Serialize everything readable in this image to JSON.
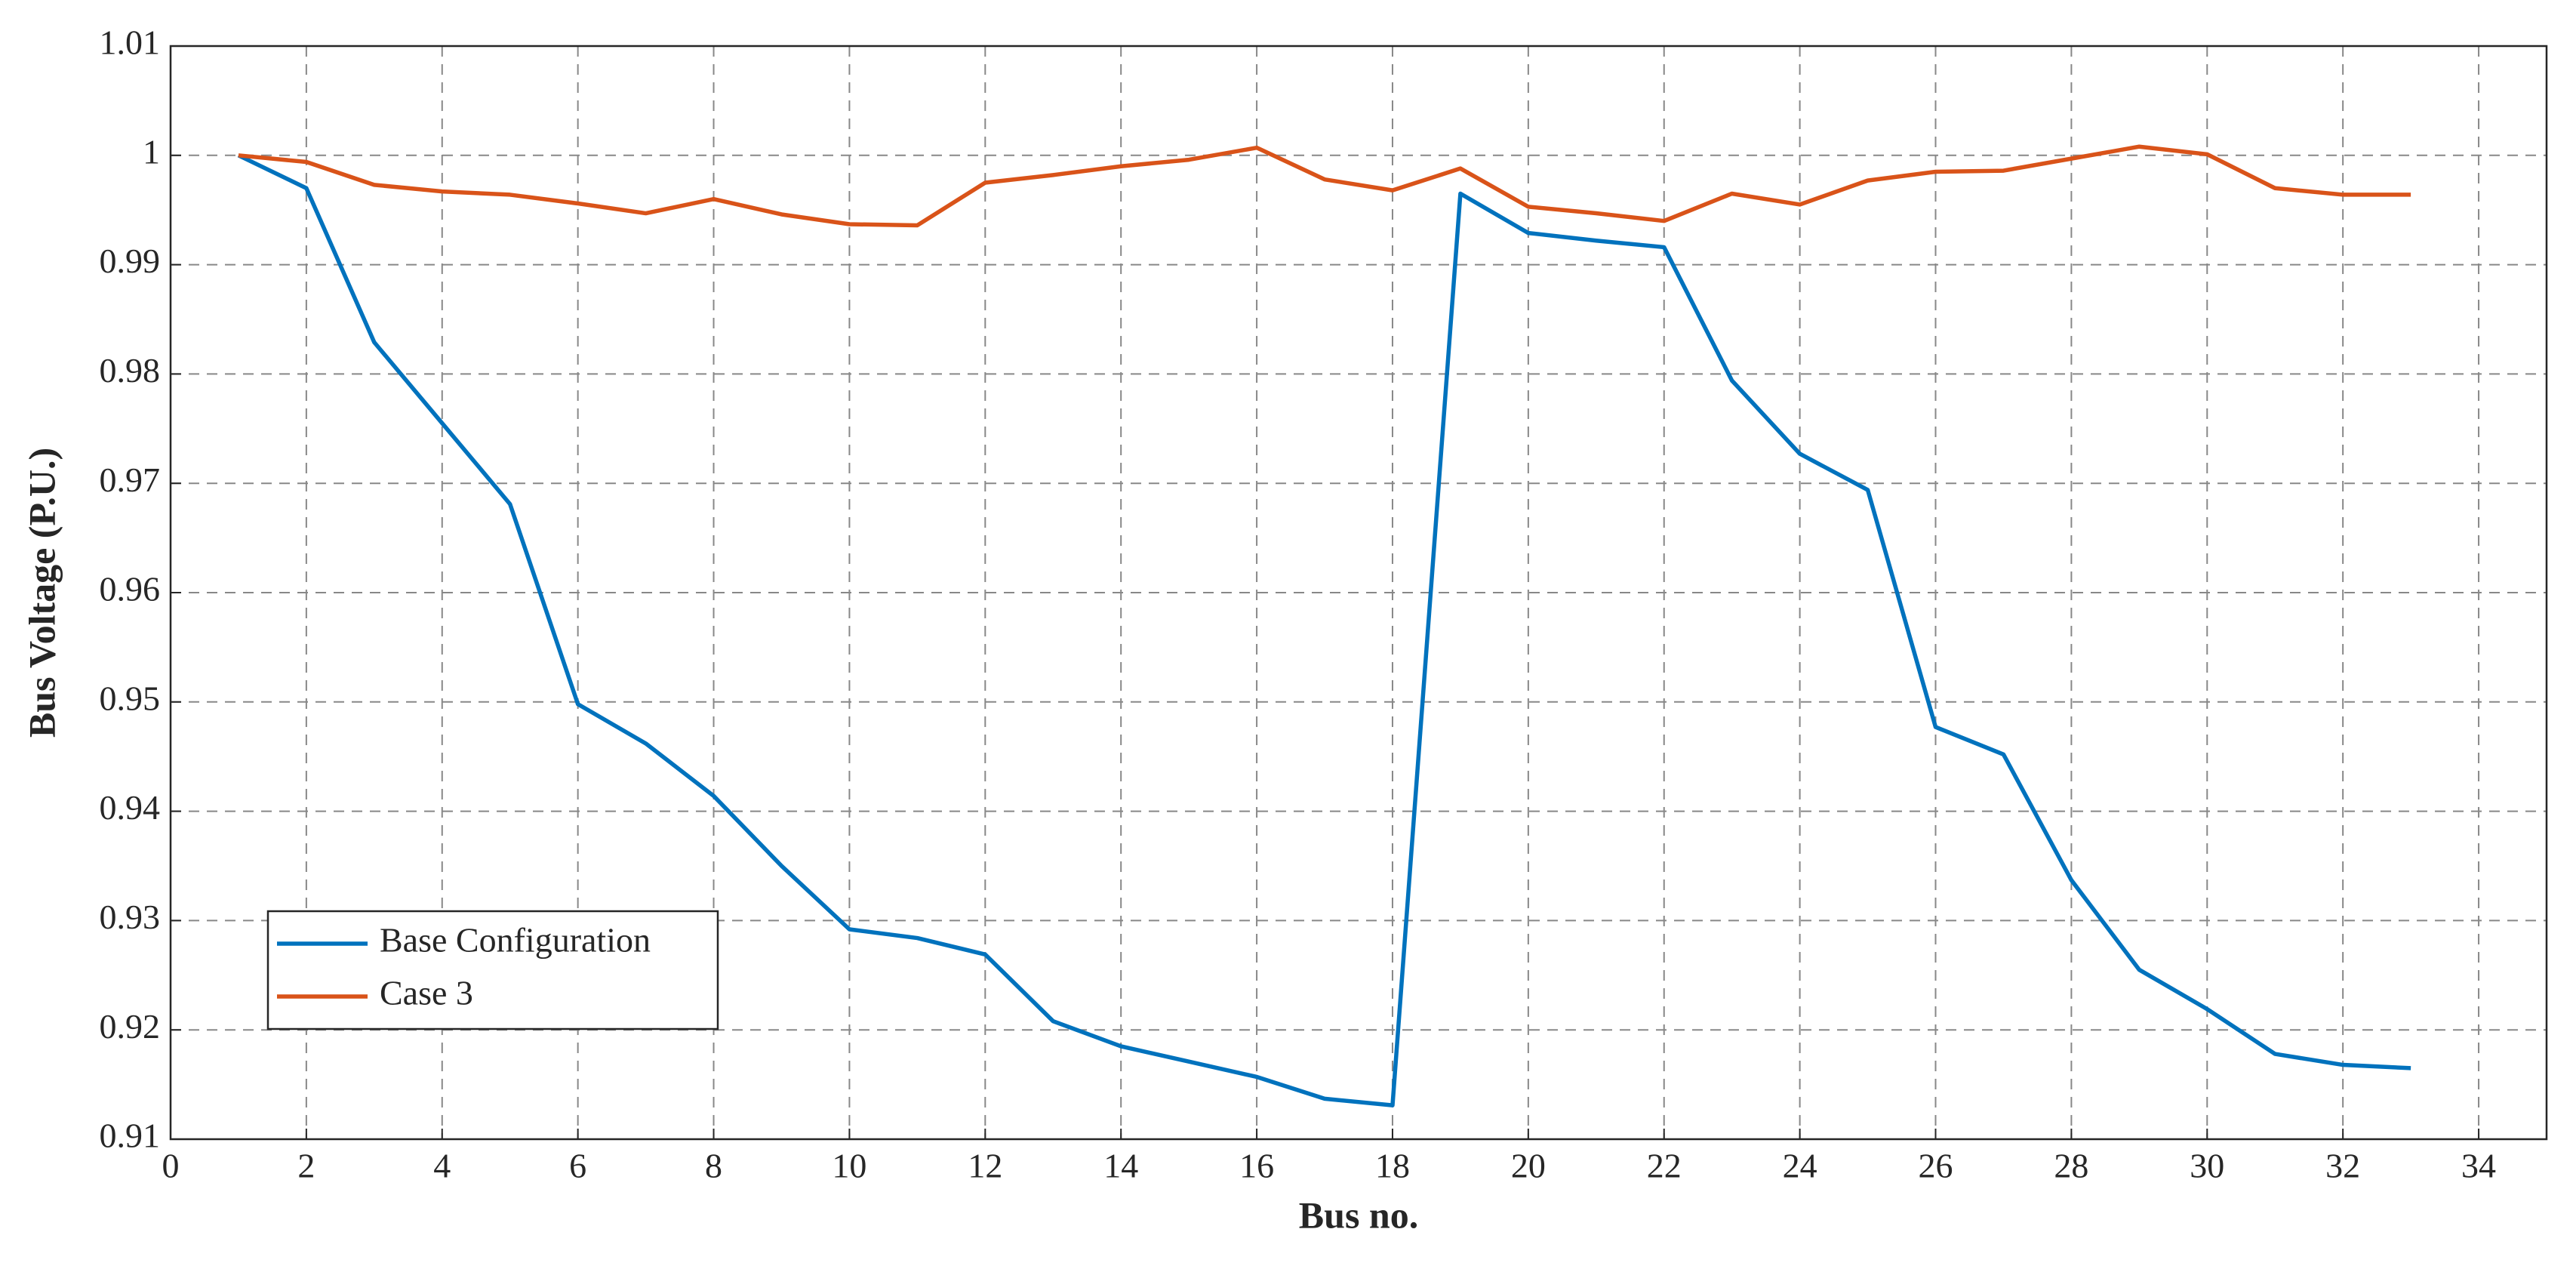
{
  "chart_data": {
    "type": "line",
    "xlabel": "Bus no.",
    "ylabel": "Bus Voltage (P.U.)",
    "x": [
      1,
      2,
      3,
      4,
      5,
      6,
      7,
      8,
      9,
      10,
      11,
      12,
      13,
      14,
      15,
      16,
      17,
      18,
      19,
      20,
      21,
      22,
      23,
      24,
      25,
      26,
      27,
      28,
      29,
      30,
      31,
      32,
      33
    ],
    "series": [
      {
        "name": "Base Configuration",
        "color": "#0072bd",
        "values": [
          1.0,
          0.997,
          0.9829,
          0.9755,
          0.9681,
          0.9498,
          0.9462,
          0.9414,
          0.935,
          0.9292,
          0.9284,
          0.9269,
          0.9208,
          0.9185,
          0.9171,
          0.9157,
          0.9137,
          0.9131,
          0.9965,
          0.9929,
          0.9922,
          0.9916,
          0.9794,
          0.9727,
          0.9694,
          0.9477,
          0.9452,
          0.9337,
          0.9255,
          0.9219,
          0.9178,
          0.9168,
          0.9165
        ]
      },
      {
        "name": "Case 3",
        "color": "#d95319",
        "values": [
          1.0,
          0.9994,
          0.9973,
          0.9967,
          0.9964,
          0.9956,
          0.9947,
          0.996,
          0.9946,
          0.9937,
          0.9936,
          0.9975,
          0.9982,
          0.999,
          0.9996,
          1.0007,
          0.9978,
          0.9968,
          0.9988,
          0.9953,
          0.9947,
          0.994,
          0.9965,
          0.9955,
          0.9977,
          0.9985,
          0.9986,
          0.9997,
          1.0008,
          1.0001,
          0.997,
          0.9964,
          0.9964
        ]
      }
    ],
    "xlim": [
      0,
      35
    ],
    "xticks": [
      0,
      2,
      4,
      6,
      8,
      10,
      12,
      14,
      16,
      18,
      20,
      22,
      24,
      26,
      28,
      30,
      32,
      34
    ],
    "ylim": [
      0.91,
      1.01
    ],
    "yticks": [
      0.91,
      0.92,
      0.93,
      0.94,
      0.95,
      0.96,
      0.97,
      0.98,
      0.99,
      1,
      1.01
    ],
    "grid": true,
    "legend": "lower left"
  }
}
